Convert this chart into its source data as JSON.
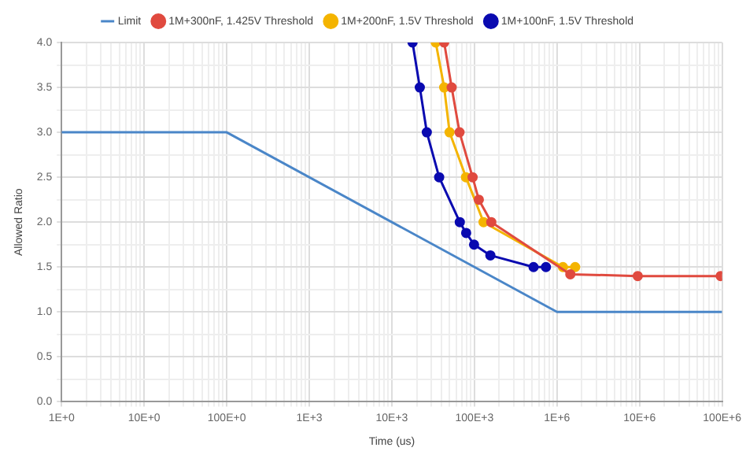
{
  "chart_data": {
    "type": "line",
    "xlabel": "Time (us)",
    "ylabel": "Allowed Ratio",
    "log": "x",
    "grid": true,
    "legend": "top",
    "marker": "circle",
    "xlim": [
      1,
      100000000
    ],
    "ylim": [
      0,
      4
    ],
    "xticks": [
      {
        "value": 1,
        "label": "1E+0"
      },
      {
        "value": 2,
        "label": null
      },
      {
        "value": 3,
        "label": null
      },
      {
        "value": 4,
        "label": null
      },
      {
        "value": 5,
        "label": null
      },
      {
        "value": 6,
        "label": null
      },
      {
        "value": 7,
        "label": null
      },
      {
        "value": 8,
        "label": null
      },
      {
        "value": 9,
        "label": null
      },
      {
        "value": 10,
        "label": "10E+0"
      },
      {
        "value": 20,
        "label": null
      },
      {
        "value": 30,
        "label": null
      },
      {
        "value": 40,
        "label": null
      },
      {
        "value": 50,
        "label": null
      },
      {
        "value": 60,
        "label": null
      },
      {
        "value": 70,
        "label": null
      },
      {
        "value": 80,
        "label": null
      },
      {
        "value": 90,
        "label": null
      },
      {
        "value": 100,
        "label": "100E+0"
      },
      {
        "value": 200,
        "label": null
      },
      {
        "value": 300,
        "label": null
      },
      {
        "value": 400,
        "label": null
      },
      {
        "value": 500,
        "label": null
      },
      {
        "value": 600,
        "label": null
      },
      {
        "value": 700,
        "label": null
      },
      {
        "value": 800,
        "label": null
      },
      {
        "value": 900,
        "label": null
      },
      {
        "value": 1000,
        "label": "1E+3"
      },
      {
        "value": 2000,
        "label": null
      },
      {
        "value": 3000,
        "label": null
      },
      {
        "value": 4000,
        "label": null
      },
      {
        "value": 5000,
        "label": null
      },
      {
        "value": 6000,
        "label": null
      },
      {
        "value": 7000,
        "label": null
      },
      {
        "value": 8000,
        "label": null
      },
      {
        "value": 9000,
        "label": null
      },
      {
        "value": 10000,
        "label": "10E+3"
      },
      {
        "value": 20000,
        "label": null
      },
      {
        "value": 30000,
        "label": null
      },
      {
        "value": 40000,
        "label": null
      },
      {
        "value": 50000,
        "label": null
      },
      {
        "value": 60000,
        "label": null
      },
      {
        "value": 70000,
        "label": null
      },
      {
        "value": 80000,
        "label": null
      },
      {
        "value": 90000,
        "label": null
      },
      {
        "value": 100000,
        "label": "100E+3"
      },
      {
        "value": 200000,
        "label": null
      },
      {
        "value": 300000,
        "label": null
      },
      {
        "value": 400000,
        "label": null
      },
      {
        "value": 500000,
        "label": null
      },
      {
        "value": 600000,
        "label": null
      },
      {
        "value": 700000,
        "label": null
      },
      {
        "value": 800000,
        "label": null
      },
      {
        "value": 900000,
        "label": null
      },
      {
        "value": 1000000,
        "label": "1E+6"
      },
      {
        "value": 2000000,
        "label": null
      },
      {
        "value": 3000000,
        "label": null
      },
      {
        "value": 4000000,
        "label": null
      },
      {
        "value": 5000000,
        "label": null
      },
      {
        "value": 6000000,
        "label": null
      },
      {
        "value": 7000000,
        "label": null
      },
      {
        "value": 8000000,
        "label": null
      },
      {
        "value": 9000000,
        "label": null
      },
      {
        "value": 10000000,
        "label": "10E+6"
      },
      {
        "value": 20000000,
        "label": null
      },
      {
        "value": 30000000,
        "label": null
      },
      {
        "value": 40000000,
        "label": null
      },
      {
        "value": 50000000,
        "label": null
      },
      {
        "value": 60000000,
        "label": null
      },
      {
        "value": 70000000,
        "label": null
      },
      {
        "value": 80000000,
        "label": null
      },
      {
        "value": 90000000,
        "label": null
      },
      {
        "value": 100000000,
        "label": "100E+6"
      }
    ],
    "yticks": [
      {
        "value": 0,
        "label": "0.0"
      },
      {
        "value": 0.25,
        "label": null
      },
      0.5,
      {
        "value": 0.75,
        "label": null
      },
      {
        "value": 1,
        "label": "1.0"
      },
      {
        "value": 1.25,
        "label": null
      },
      1.5,
      {
        "value": 1.75,
        "label": null
      },
      {
        "value": 2,
        "label": "2.0"
      },
      {
        "value": 2.25,
        "label": null
      },
      2.5,
      {
        "value": 2.75,
        "label": null
      },
      {
        "value": 3,
        "label": "3.0"
      },
      {
        "value": 3.25,
        "label": null
      },
      3.5,
      {
        "value": 3.75,
        "label": null
      },
      {
        "value": 4,
        "label": "4.0"
      }
    ],
    "series": [
      {
        "name": "Limit",
        "color": "#4a86c8",
        "marker": "none",
        "x": [
          1,
          100,
          1000000,
          100000000
        ],
        "values": [
          3,
          3,
          1,
          1
        ]
      },
      {
        "name": "1M+300nF, 1.425V Threshold",
        "color": "#e04a3f",
        "x": [
          43000,
          53000,
          66000,
          95000,
          113000,
          160000,
          1450000,
          9500000,
          96000000
        ],
        "values": [
          4,
          3.5,
          3,
          2.5,
          2.25,
          2,
          1.42,
          1.4,
          1.4
        ]
      },
      {
        "name": "1M+200nF, 1.5V Threshold",
        "color": "#f4b400",
        "x": [
          34000,
          43000,
          50000,
          79000,
          129000,
          1180000,
          1660000
        ],
        "values": [
          4,
          3.5,
          3,
          2.5,
          2,
          1.5,
          1.5
        ]
      },
      {
        "name": "1M+100nF, 1.5V Threshold",
        "color": "#0a0ab0",
        "x": [
          17800,
          21800,
          26500,
          37400,
          66500,
          79400,
          99000,
          156000,
          520000,
          735000
        ],
        "values": [
          4,
          3.5,
          3,
          2.5,
          2,
          1.88,
          1.75,
          1.63,
          1.5,
          1.5
        ]
      }
    ]
  }
}
